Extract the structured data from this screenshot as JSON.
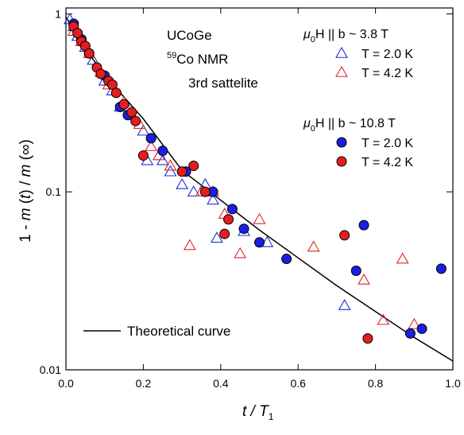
{
  "chart_data": {
    "type": "scatter",
    "y_label": {
      "pre": "1 - ",
      "parts": [
        "m",
        " (",
        "t",
        ") / ",
        "m",
        " (∞)"
      ]
    },
    "x_label": {
      "main": "t / T",
      "sub": "1"
    },
    "log_y": true,
    "xlim": [
      0,
      1
    ],
    "ylim": [
      0.01,
      1.08
    ],
    "xticks": [
      {
        "value": 0,
        "label": "0.0"
      },
      0.2,
      0.4,
      0.6,
      0.8,
      {
        "value": 1,
        "label": "1.0"
      }
    ],
    "yticks": [
      0.01,
      0.1,
      1
    ],
    "annotations": [
      {
        "text": "UCoGe"
      },
      {
        "sup": "59",
        "text": "Co NMR"
      },
      {
        "text": "3rd sattelite"
      }
    ],
    "legend_titles": [
      {
        "pre": "μ",
        "sub": "0",
        "post": "H || b ~  3.8 T"
      },
      {
        "pre": "μ",
        "sub": "0",
        "post": "H || b ~ 10.8 T"
      }
    ],
    "legend_position": "upper right",
    "series": [
      {
        "name": "T = 2.0 K",
        "marker": "triangle",
        "color": "#1a2fd6",
        "filled": false,
        "x": [
          0.01,
          0.02,
          0.03,
          0.05,
          0.07,
          0.1,
          0.12,
          0.14,
          0.17,
          0.2,
          0.21,
          0.25,
          0.27,
          0.3,
          0.33,
          0.36,
          0.38,
          0.39,
          0.46,
          0.52,
          0.72
        ],
        "values": [
          0.93,
          0.85,
          0.75,
          0.65,
          0.55,
          0.42,
          0.37,
          0.3,
          0.27,
          0.22,
          0.15,
          0.15,
          0.13,
          0.11,
          0.1,
          0.11,
          0.09,
          0.055,
          0.06,
          0.052,
          0.023
        ]
      },
      {
        "name": "T = 4.2 K",
        "marker": "triangle",
        "color": "#e02424",
        "filled": false,
        "x": [
          0.02,
          0.04,
          0.06,
          0.09,
          0.11,
          0.15,
          0.19,
          0.22,
          0.24,
          0.27,
          0.32,
          0.35,
          0.38,
          0.41,
          0.45,
          0.5,
          0.64,
          0.77,
          0.82,
          0.87,
          0.9
        ],
        "values": [
          0.8,
          0.7,
          0.6,
          0.47,
          0.4,
          0.32,
          0.24,
          0.18,
          0.16,
          0.14,
          0.05,
          0.1,
          0.1,
          0.075,
          0.045,
          0.07,
          0.049,
          0.032,
          0.019,
          0.042,
          0.018
        ]
      },
      {
        "name": "T = 2.0 K",
        "marker": "circle",
        "color": "#1a1fe0",
        "filled": true,
        "x": [
          0.02,
          0.04,
          0.06,
          0.1,
          0.14,
          0.16,
          0.22,
          0.25,
          0.31,
          0.38,
          0.43,
          0.46,
          0.5,
          0.57,
          0.75,
          0.77,
          0.89,
          0.92,
          0.97
        ],
        "values": [
          0.88,
          0.72,
          0.6,
          0.45,
          0.3,
          0.27,
          0.2,
          0.17,
          0.13,
          0.1,
          0.08,
          0.062,
          0.052,
          0.042,
          0.036,
          0.065,
          0.016,
          0.017,
          0.037
        ]
      },
      {
        "name": "T = 4.2 K",
        "marker": "circle",
        "color": "#e51d1d",
        "filled": true,
        "x": [
          0.02,
          0.03,
          0.04,
          0.05,
          0.06,
          0.08,
          0.09,
          0.11,
          0.12,
          0.13,
          0.15,
          0.17,
          0.18,
          0.2,
          0.3,
          0.33,
          0.36,
          0.41,
          0.42,
          0.72,
          0.78
        ],
        "values": [
          0.85,
          0.78,
          0.7,
          0.66,
          0.6,
          0.5,
          0.46,
          0.42,
          0.4,
          0.36,
          0.31,
          0.28,
          0.25,
          0.16,
          0.13,
          0.14,
          0.1,
          0.058,
          0.07,
          0.057,
          0.015
        ]
      }
    ],
    "curve": {
      "name": "Theoretical curve",
      "color": "#000000",
      "x": [
        0,
        0.05,
        0.1,
        0.2,
        0.3,
        0.5,
        0.7,
        0.9,
        1.0
      ],
      "values": [
        0.96,
        0.636,
        0.453,
        0.257,
        0.132,
        0.061,
        0.0297,
        0.0152,
        0.0112
      ]
    }
  }
}
